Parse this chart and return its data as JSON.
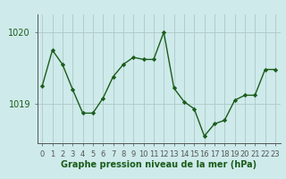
{
  "x": [
    0,
    1,
    2,
    3,
    4,
    5,
    6,
    7,
    8,
    9,
    10,
    11,
    12,
    13,
    14,
    15,
    16,
    17,
    18,
    19,
    20,
    21,
    22,
    23
  ],
  "y": [
    1019.25,
    1019.75,
    1019.55,
    1019.2,
    1018.87,
    1018.87,
    1019.08,
    1019.38,
    1019.55,
    1019.65,
    1019.62,
    1019.62,
    1020.0,
    1019.22,
    1019.03,
    1018.93,
    1018.55,
    1018.72,
    1018.77,
    1019.05,
    1019.12,
    1019.12,
    1019.48,
    1019.48
  ],
  "ylim_min": 1018.45,
  "ylim_max": 1020.25,
  "ytick_1": 1019,
  "ytick_2": 1020,
  "xlabel": "Graphe pression niveau de la mer (hPa)",
  "bg_color": "#ceeaea",
  "grid_color": "#aec8c8",
  "line_color": "#1a5c1a",
  "marker_color": "#1a5c1a",
  "label_color": "#1a5c1a",
  "axis_color": "#555555",
  "label_fontsize": 6,
  "xlabel_fontsize": 7,
  "ytick_fontsize": 7
}
